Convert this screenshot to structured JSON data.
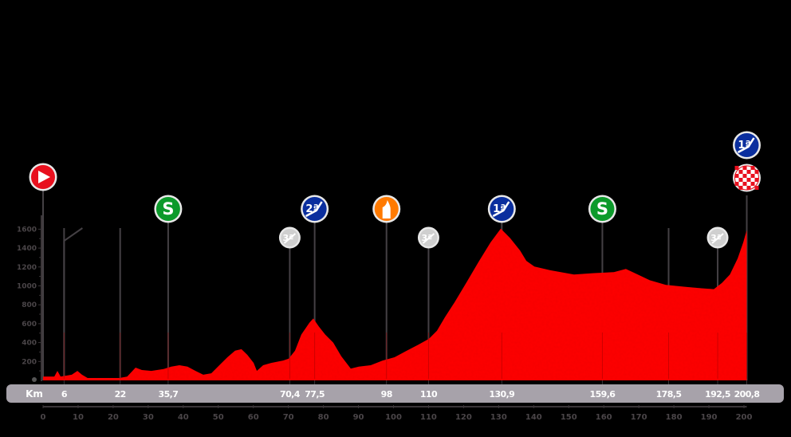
{
  "chart_data": {
    "type": "area",
    "title": "",
    "xlabel": "Km",
    "ylabel": "",
    "xlim": [
      0,
      200.8
    ],
    "ylim": [
      0,
      1600
    ],
    "grid": false,
    "colors": {
      "profile": "#ff0000",
      "background": "#000000",
      "km_bar": "#a7a2aa",
      "axis": "#3a3538",
      "tick_label": "#4a4548",
      "pole": "#444044"
    },
    "y_ticks": [
      200,
      400,
      600,
      800,
      1000,
      1200,
      1400,
      1600
    ],
    "x_ticks": [
      0,
      10,
      20,
      30,
      40,
      50,
      60,
      70,
      80,
      90,
      100,
      110,
      120,
      130,
      140,
      150,
      160,
      170,
      180,
      190,
      200
    ],
    "km_markers": [
      "6",
      "22",
      "35,7",
      "70,4",
      "77,5",
      "98",
      "110",
      "130,9",
      "159,6",
      "178,5",
      "192,5",
      "200,8"
    ],
    "km_marker_values": [
      6,
      22,
      35.7,
      70.4,
      77.5,
      98,
      110,
      130.9,
      159.6,
      178.5,
      192.5,
      200.8
    ],
    "profile": {
      "km": [
        0,
        3.2,
        4.1,
        5,
        8.2,
        9.8,
        11.1,
        12.7,
        21.8,
        24,
        26.4,
        28.2,
        30.9,
        34.4,
        36.6,
        38.9,
        41.2,
        43.5,
        45.7,
        48,
        50.3,
        52.6,
        54.8,
        56.6,
        58.3,
        60.1,
        61,
        62.8,
        65.1,
        68.5,
        70.1,
        71.9,
        73.7,
        76,
        77.1,
        78.7,
        80.5,
        82.8,
        85.1,
        87.8,
        90.1,
        93.5,
        96.9,
        100.3,
        103.8,
        107.2,
        110.1,
        112.4,
        114.7,
        117.4,
        120.8,
        124.2,
        127.7,
        130.6,
        133.3,
        136.1,
        137.9,
        140.2,
        144.7,
        151.5,
        157.2,
        162.9,
        166.3,
        169.7,
        173.1,
        177.7,
        183.4,
        187.9,
        191.4,
        193.7,
        196,
        198.2,
        199.8,
        200.8
      ],
      "elevation_m": [
        40,
        40,
        100,
        40,
        60,
        100,
        60,
        25,
        25,
        40,
        135,
        110,
        100,
        120,
        145,
        160,
        145,
        100,
        60,
        75,
        160,
        245,
        315,
        330,
        270,
        185,
        100,
        160,
        185,
        210,
        230,
        315,
        485,
        610,
        655,
        570,
        485,
        400,
        255,
        125,
        145,
        160,
        210,
        245,
        315,
        380,
        440,
        525,
        670,
        825,
        1035,
        1250,
        1460,
        1605,
        1505,
        1375,
        1265,
        1205,
        1165,
        1120,
        1135,
        1145,
        1180,
        1120,
        1060,
        1010,
        990,
        975,
        965,
        1030,
        1120,
        1290,
        1460,
        1590
      ]
    },
    "climbs_and_points": [
      {
        "km": 0,
        "type": "start",
        "icon": "start-icon"
      },
      {
        "km": 35.7,
        "type": "intermediate-sprint",
        "icon": "sprint-icon",
        "label": "S"
      },
      {
        "km": 70.4,
        "type": "3rd-category-climb",
        "icon": "climb-3rd-cat-icon",
        "label": "3ª"
      },
      {
        "km": 77.5,
        "type": "2nd-category-climb",
        "icon": "climb-2nd-cat-icon",
        "label": "2ª"
      },
      {
        "km": 98,
        "type": "feed-zone",
        "icon": "feed-zone-icon"
      },
      {
        "km": 110,
        "type": "3rd-category-climb",
        "icon": "climb-3rd-cat-icon",
        "label": "3ª"
      },
      {
        "km": 130.9,
        "type": "1st-category-climb",
        "icon": "climb-1st-cat-icon",
        "label": "1ª"
      },
      {
        "km": 159.6,
        "type": "intermediate-sprint",
        "icon": "sprint-icon",
        "label": "S"
      },
      {
        "km": 192.5,
        "type": "3rd-category-climb",
        "icon": "climb-3rd-cat-icon",
        "label": "3ª"
      },
      {
        "km": 200.8,
        "type": "1st-category-climb",
        "icon": "climb-1st-cat-icon",
        "label": "1ª"
      },
      {
        "km": 200.8,
        "type": "finish",
        "icon": "finish-flag-icon"
      }
    ]
  },
  "km_bar": {
    "label": "Km"
  }
}
